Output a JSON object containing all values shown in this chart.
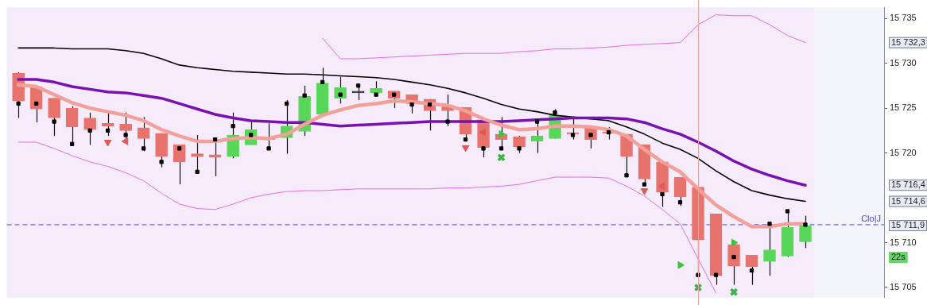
{
  "chart_data": {
    "type": "candlestick",
    "categories": [
      null,
      null,
      null,
      null,
      null,
      null,
      null,
      null,
      null,
      null,
      null,
      null,
      null,
      null,
      null,
      null,
      null,
      null,
      null,
      null,
      null,
      null,
      null,
      null,
      null,
      null,
      null,
      null,
      null,
      null,
      null,
      null,
      null,
      null,
      null,
      null,
      null,
      null,
      null,
      null,
      null,
      null,
      null,
      null,
      null
    ],
    "ohlc": [
      [
        15728.9,
        15729.0,
        15723.9,
        15725.8
      ],
      [
        15727.4,
        15727.4,
        15723.4,
        15724.9
      ],
      [
        15726.1,
        15726.1,
        15721.9,
        15723.9
      ],
      [
        15725.0,
        15725.2,
        15720.8,
        15722.9
      ],
      [
        15723.9,
        15724.5,
        15720.9,
        15722.6
      ],
      [
        15723.3,
        15724.5,
        15721.9,
        15723.0
      ],
      [
        15723.2,
        15724.5,
        15721.4,
        15722.5
      ],
      [
        15722.8,
        15724.0,
        15720.2,
        15721.6
      ],
      [
        15722.2,
        15722.2,
        15718.4,
        15719.6
      ],
      [
        15720.9,
        15720.9,
        15716.5,
        15719.0
      ],
      [
        15719.9,
        15722.0,
        15717.9,
        15719.6
      ],
      [
        15719.8,
        15721.3,
        15717.4,
        15719.5
      ],
      [
        15719.6,
        15724.5,
        15719.4,
        15722.0
      ],
      [
        15720.9,
        15723.6,
        15720.9,
        15722.6
      ],
      [
        15721.7,
        15723.3,
        15720.5,
        15721.5
      ],
      [
        15721.7,
        15725.9,
        15719.9,
        15723.0
      ],
      [
        15722.4,
        15727.5,
        15721.9,
        15726.3
      ],
      [
        15724.3,
        15729.5,
        15724.3,
        15727.8
      ],
      [
        15726.1,
        15728.5,
        15725.5,
        15727.3
      ],
      [
        15726.7,
        15727.7,
        15725.9,
        15726.7
      ],
      [
        15726.7,
        15728.0,
        15726.3,
        15727.2
      ],
      [
        15726.9,
        15726.9,
        15725.0,
        15726.1
      ],
      [
        15726.5,
        15726.5,
        15724.4,
        15725.5
      ],
      [
        15726.0,
        15726.0,
        15722.5,
        15724.7
      ],
      [
        15725.3,
        15726.5,
        15723.0,
        15724.7
      ],
      [
        15725.1,
        15725.1,
        15721.5,
        15722.1
      ],
      [
        15723.7,
        15723.7,
        15719.5,
        15720.6
      ],
      [
        15722.1,
        15724.0,
        15720.5,
        15721.5
      ],
      [
        15721.8,
        15721.9,
        15720.0,
        15720.7
      ],
      [
        15721.3,
        15723.7,
        15720.0,
        15721.9
      ],
      [
        15721.6,
        15724.9,
        15721.6,
        15724.2
      ],
      [
        15722.1,
        15723.8,
        15721.5,
        15722.1
      ],
      [
        15722.9,
        15722.9,
        15720.5,
        15721.5
      ],
      [
        15722.2,
        15722.9,
        15721.5,
        15722.2
      ],
      [
        15722.1,
        15722.1,
        15717.4,
        15719.6
      ],
      [
        15720.9,
        15720.9,
        15716.6,
        15717.1
      ],
      [
        15719.0,
        15719.0,
        15714.0,
        15715.6
      ],
      [
        15717.3,
        15717.3,
        15714.1,
        15715.1
      ],
      [
        15716.2,
        15716.2,
        15706.3,
        15710.3
      ],
      [
        15713.2,
        15713.2,
        15705.3,
        15706.3
      ],
      [
        15709.8,
        15709.8,
        15705.3,
        15707.4
      ],
      [
        15708.6,
        15708.6,
        15705.3,
        15707.3
      ],
      [
        15707.9,
        15712.1,
        15706.3,
        15709.2
      ],
      [
        15708.5,
        15713.5,
        15708.4,
        15711.7
      ],
      [
        15710.1,
        15713.0,
        15709.4,
        15711.9
      ]
    ],
    "colors": [
      "#e8736d",
      "#e8736d",
      "#e8736d",
      "#e8736d",
      "#e8736d",
      "#e8736d",
      "#e8736d",
      "#e8736d",
      "#e8736d",
      "#e8736d",
      "#e8736d",
      "#e8736d",
      "#58d658",
      "#58d658",
      "#e8736d",
      "#58d658",
      "#58d658",
      "#58d658",
      "#58d658",
      "#222222",
      "#58d658",
      "#e8736d",
      "#e8736d",
      "#e8736d",
      "#e8736d",
      "#e8736d",
      "#e8736d",
      "#e8736d",
      "#e8736d",
      "#58d658",
      "#58d658",
      "#e8736d",
      "#e8736d",
      "#e8736d",
      "#e8736d",
      "#e8736d",
      "#e8736d",
      "#e8736d",
      "#e8736d",
      "#e8736d",
      "#e8736d",
      "#e8736d",
      "#58d658",
      "#58d658",
      "#58d658"
    ],
    "series": [
      {
        "type": "line",
        "color": "#e46ee4",
        "values": [
          null,
          null,
          null,
          null,
          null,
          null,
          null,
          null,
          null,
          null,
          null,
          null,
          null,
          null,
          null,
          null,
          null,
          15732.8,
          15730.5,
          15730.5,
          15730.6,
          15730.7,
          15730.8,
          15730.9,
          15731.0,
          15731.1,
          15731.1,
          15731.1,
          15731.3,
          15731.4,
          15731.6,
          15731.6,
          15731.7,
          15731.8,
          15732.0,
          15732.1,
          15732.2,
          15732.3,
          15734.3,
          15735.4,
          15735.3,
          15735.3,
          15734.3,
          15733.1,
          15732.3
        ]
      },
      {
        "type": "line",
        "color": "#e46ee4",
        "values": [
          15721.2,
          15721.2,
          15720.5,
          15719.7,
          15719.0,
          15718.5,
          15717.8,
          15716.9,
          15715.5,
          15714.3,
          15713.8,
          15713.7,
          15714.3,
          15715.0,
          15715.4,
          15715.7,
          15715.8,
          15715.8,
          15715.9,
          15716.0,
          15716.0,
          15716.0,
          15716.0,
          15716.0,
          15716.1,
          15716.1,
          15716.2,
          15716.3,
          15716.5,
          15716.9,
          15717.3,
          15717.3,
          15717.3,
          15717.2,
          15716.3,
          15715.2,
          15713.7,
          15712.1,
          15708.2,
          15704.4,
          null,
          null,
          null,
          null,
          null
        ]
      },
      {
        "type": "line",
        "color": "#000000",
        "values": [
          15731.7,
          15731.7,
          15731.7,
          15731.6,
          15731.6,
          15731.6,
          15731.4,
          15731.1,
          15730.5,
          15729.8,
          15729.5,
          15729.3,
          15729.1,
          15729.0,
          15728.9,
          15728.8,
          15728.8,
          15728.7,
          15728.6,
          15728.5,
          15728.4,
          15728.2,
          15727.9,
          15727.6,
          15727.2,
          15726.7,
          15726.1,
          15725.4,
          15724.9,
          15724.6,
          15724.2,
          15724.0,
          15723.8,
          15723.6,
          15722.9,
          15722.1,
          15721.1,
          15720.4,
          15719.4,
          15718.0,
          15716.8,
          15715.8,
          15715.3,
          15714.9,
          15714.6
        ]
      },
      {
        "type": "line",
        "color": "#7a10b4",
        "values": [
          15728.2,
          15728.2,
          15727.9,
          15727.4,
          15727.1,
          15726.8,
          15726.7,
          15726.4,
          15726.1,
          15725.5,
          15724.9,
          15724.3,
          15723.9,
          15723.6,
          15723.5,
          15723.4,
          15723.4,
          15723.2,
          15723.0,
          15723.1,
          15723.2,
          15723.3,
          15723.4,
          15723.5,
          15723.5,
          15723.5,
          15723.5,
          15723.5,
          15723.6,
          15723.7,
          15723.8,
          15723.9,
          15723.9,
          15723.9,
          15723.8,
          15723.4,
          15722.7,
          15722.1,
          15721.2,
          15720.2,
          15719.1,
          15718.2,
          15717.5,
          15716.9,
          15716.4
        ]
      },
      {
        "type": "line",
        "color": "#f4a09a",
        "values": [
          15727.6,
          15727.4,
          15726.5,
          15725.6,
          15725.0,
          15724.6,
          15724.2,
          15723.6,
          15722.6,
          15721.9,
          15721.3,
          15721.3,
          15721.6,
          15721.7,
          15721.6,
          15722.1,
          15723.2,
          15724.2,
          15724.8,
          15725.3,
          15725.5,
          15725.8,
          15725.7,
          15725.5,
          15725.3,
          15724.7,
          15723.8,
          15723.1,
          15722.6,
          15722.7,
          15723.0,
          15723.0,
          15722.9,
          15722.6,
          15721.9,
          15720.4,
          15719.0,
          15717.9,
          15716.0,
          15714.2,
          15712.9,
          15711.8,
          15711.8,
          15712.1,
          15712.1
        ]
      },
      {
        "type": "scatter",
        "marker": "square",
        "color": "#000000",
        "values": [
          15725.5,
          15725.5,
          15723.5,
          15721.0,
          15722.5,
          15722.5,
          15722.0,
          15720.5,
          15719.0,
          15720.5,
          15717.9,
          15721.5,
          15723.0,
          15722.0,
          15720.5,
          15725.5,
          15726.4,
          15727.9,
          15726.5,
          15727.5,
          15726.5,
          15726.5,
          15725.4,
          15725.4,
          15723.5,
          15721.5,
          15720.5,
          15720.5,
          15720.5,
          15723.5,
          15724.5,
          15722.0,
          15722.0,
          15722.3,
          15717.5,
          15716.5,
          15715.4,
          15714.5,
          15706.4,
          15706.4,
          15708.4,
          15706.9,
          15712.1,
          15713.5,
          15712.0
        ]
      },
      {
        "type": "scatter",
        "marker": "triangle",
        "color": "#e05a55",
        "values": [
          null,
          null,
          null,
          null,
          null,
          15721.2,
          null,
          null,
          null,
          null,
          null,
          null,
          null,
          null,
          null,
          null,
          null,
          null,
          null,
          null,
          null,
          null,
          null,
          null,
          null,
          15720.6,
          null,
          null,
          null,
          null,
          null,
          null,
          null,
          null,
          null,
          15715.8,
          null,
          null,
          null,
          null,
          null,
          null,
          null,
          null,
          null
        ]
      },
      {
        "type": "scatter",
        "marker": "triangle",
        "color": "#e05a55",
        "values": [
          null,
          null,
          null,
          null,
          null,
          null,
          15721.3,
          null,
          null,
          null,
          null,
          null,
          null,
          null,
          null,
          null,
          null,
          null,
          null,
          null,
          null,
          null,
          null,
          null,
          null,
          null,
          15722.3,
          null,
          null,
          null,
          null,
          null,
          null,
          null,
          null,
          null,
          15716.3,
          null,
          null,
          null,
          null,
          null,
          null,
          null,
          null
        ]
      },
      {
        "type": "scatter",
        "marker": "triangle",
        "color": "#3cc43c",
        "values": [
          null,
          null,
          null,
          null,
          null,
          null,
          null,
          null,
          null,
          null,
          null,
          null,
          null,
          null,
          null,
          null,
          null,
          null,
          null,
          null,
          null,
          null,
          null,
          null,
          null,
          null,
          null,
          15722.1,
          null,
          null,
          null,
          null,
          null,
          null,
          null,
          null,
          null,
          15707.5,
          null,
          null,
          15710.0,
          null,
          null,
          null,
          null
        ]
      },
      {
        "type": "scatter",
        "marker": "cross",
        "color": "#3cb44b",
        "values": [
          null,
          null,
          null,
          null,
          null,
          null,
          null,
          null,
          null,
          null,
          null,
          null,
          null,
          null,
          null,
          null,
          null,
          null,
          null,
          null,
          null,
          null,
          null,
          null,
          null,
          null,
          null,
          15719.5,
          null,
          null,
          null,
          null,
          null,
          null,
          null,
          null,
          null,
          null,
          15705.0,
          null,
          15704.5,
          null,
          null,
          null,
          null
        ]
      }
    ],
    "ylim": [
      15703.9,
      15736.2
    ],
    "yticks": [
      {
        "value": 15705,
        "label": "15 705"
      },
      {
        "value": 15710,
        "label": "15 710"
      },
      {
        "value": 15720,
        "label": "15 720"
      },
      {
        "value": 15725,
        "label": "15 725"
      },
      {
        "value": 15730,
        "label": "15 730"
      },
      {
        "value": 15735,
        "label": "15 735"
      }
    ],
    "tick_labels": "y",
    "ref_lines": [
      {
        "axis": "y",
        "value": 15712.0,
        "label": "Clo|J",
        "color": "#4b4bc8",
        "line_style": "dashed"
      }
    ],
    "annotations": [
      "15 732,3",
      "15 716,4",
      "15 714,6",
      "15 711,9",
      "22s"
    ]
  }
}
